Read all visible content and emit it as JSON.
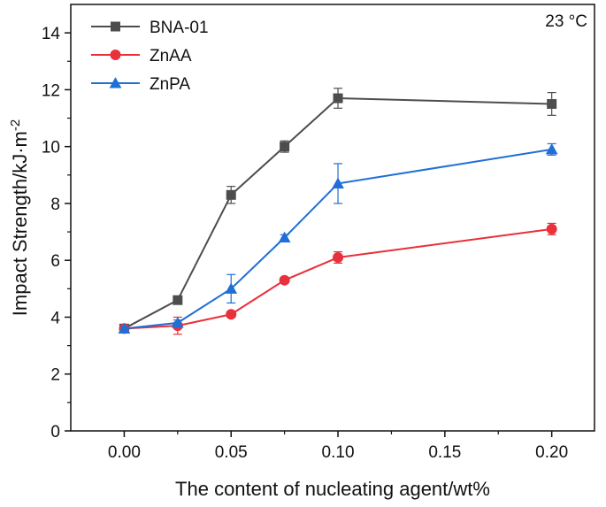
{
  "chart_data": {
    "type": "line",
    "xlabel": "The content of nucleating agent/wt%",
    "ylabel_main": "Impact Strength/kJ·m",
    "ylabel_sup": "-2",
    "annotation": "23 °C",
    "xlim": [
      -0.025,
      0.22
    ],
    "ylim": [
      0,
      15
    ],
    "x_ticks": [
      0.0,
      0.05,
      0.1,
      0.15,
      0.2
    ],
    "x_tick_labels": [
      "0.00",
      "0.05",
      "0.10",
      "0.15",
      "0.20"
    ],
    "y_ticks": [
      0,
      2,
      4,
      6,
      8,
      10,
      12,
      14
    ],
    "y_tick_labels": [
      "0",
      "2",
      "4",
      "6",
      "8",
      "10",
      "12",
      "14"
    ],
    "legend_position": "top-left",
    "x": [
      0.0,
      0.025,
      0.05,
      0.075,
      0.1,
      0.2
    ],
    "series": [
      {
        "name": "BNA-01",
        "marker": "square",
        "color": "#4d4d4d",
        "values": [
          3.6,
          4.6,
          8.3,
          10.0,
          11.7,
          11.5
        ],
        "errors": [
          0.1,
          0.1,
          0.3,
          0.2,
          0.35,
          0.4
        ]
      },
      {
        "name": "ZnAA",
        "marker": "circle",
        "color": "#e8313a",
        "values": [
          3.6,
          3.7,
          4.1,
          5.3,
          6.1,
          7.1
        ],
        "errors": [
          0.1,
          0.3,
          0.1,
          0.1,
          0.2,
          0.2
        ]
      },
      {
        "name": "ZnPA",
        "marker": "triangle",
        "color": "#1f6fd6",
        "values": [
          3.6,
          3.8,
          5.0,
          6.8,
          8.7,
          9.9
        ],
        "errors": [
          0.1,
          0.1,
          0.5,
          0.1,
          0.7,
          0.2
        ]
      }
    ]
  }
}
